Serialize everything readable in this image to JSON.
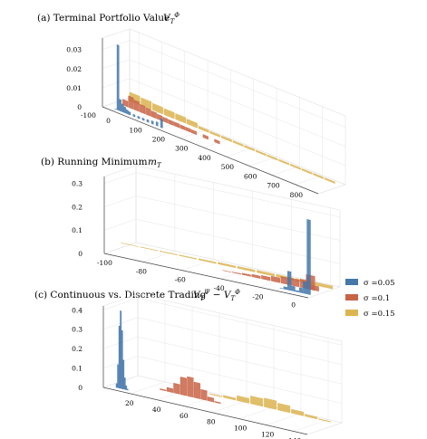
{
  "chart_data": [
    {
      "type": "bar",
      "panel_label": "(a)",
      "title": "(a) Terminal Portfolio Value",
      "title_math": "V_T^Φ",
      "x_ticks": [
        "0",
        "100",
        "200",
        "300",
        "400",
        "500",
        "600",
        "700",
        "800"
      ],
      "z_ticks": [
        "0.03",
        "0.02",
        "0.01",
        "0"
      ],
      "depth_ticks": [
        "-100"
      ],
      "xlim": [
        -40,
        900
      ],
      "zlim": [
        0,
        0.036
      ],
      "series": [
        {
          "name": "σ =0.05",
          "color": "#4477aa",
          "x": [
            0,
            10,
            20,
            30,
            40,
            50,
            60,
            80,
            100,
            120,
            140,
            160,
            180,
            200
          ],
          "values": [
            0.0,
            0.034,
            0.006,
            0.004,
            0.003,
            0.002,
            0.0015,
            0.001,
            0.001,
            0.001,
            0.0012,
            0.0015,
            0.002,
            0.0045
          ]
        },
        {
          "name": "σ =0.1",
          "color": "#c86446",
          "x": [
            0,
            25,
            50,
            75,
            100,
            125,
            150,
            175,
            200,
            225,
            250,
            275,
            300,
            350,
            400
          ],
          "values": [
            0.003,
            0.006,
            0.005,
            0.004,
            0.0035,
            0.003,
            0.0025,
            0.0022,
            0.002,
            0.002,
            0.0018,
            0.0017,
            0.0016,
            0.0015,
            0.0014
          ]
        },
        {
          "name": "σ =0.15",
          "color": "#dcb450",
          "x": [
            0,
            50,
            100,
            150,
            200,
            250,
            300,
            350,
            400,
            450,
            500,
            550,
            600,
            650,
            700,
            750,
            800,
            850
          ],
          "values": [
            0.0045,
            0.004,
            0.0035,
            0.0032,
            0.003,
            0.0025,
            0.0012,
            0.001,
            0.001,
            0.0009,
            0.0009,
            0.0008,
            0.0008,
            0.0008,
            0.0008,
            0.0008,
            0.0008,
            0.0008
          ]
        }
      ]
    },
    {
      "type": "bar",
      "panel_label": "(b)",
      "title": "(b) Running Minimum",
      "title_math": "m_T",
      "x_ticks": [
        "-100",
        "-80",
        "-60",
        "-40",
        "-20",
        "0"
      ],
      "z_ticks": [
        "0.3",
        "0.2",
        "0.1",
        "0"
      ],
      "xlim": [
        -100,
        5
      ],
      "zlim": [
        0,
        0.33
      ],
      "series": [
        {
          "name": "σ =0.05",
          "color": "#4477aa",
          "x": [
            -12,
            -10,
            -8,
            -6,
            -4,
            -2,
            0,
            2
          ],
          "values": [
            0.0,
            0.01,
            0.08,
            0.02,
            0.005,
            0.02,
            0.05,
            0.32
          ]
        },
        {
          "name": "σ =0.1",
          "color": "#c86446",
          "x": [
            -45,
            -40,
            -35,
            -30,
            -25,
            -20,
            -15,
            -10,
            -5,
            -2,
            0
          ],
          "values": [
            0.0,
            0.002,
            0.006,
            0.01,
            0.014,
            0.02,
            0.028,
            0.03,
            0.035,
            0.06,
            0.02
          ]
        },
        {
          "name": "σ =0.15",
          "color": "#dcb450",
          "x": [
            -100,
            -90,
            -80,
            -70,
            -60,
            -50,
            -40,
            -30,
            -20,
            -10,
            0
          ],
          "values": [
            0.0,
            0.001,
            0.002,
            0.003,
            0.005,
            0.007,
            0.008,
            0.009,
            0.01,
            0.01,
            0.012
          ]
        }
      ]
    },
    {
      "type": "bar",
      "panel_label": "(c)",
      "title": "(c) Continuous vs. Discrete Trading",
      "title_math": "V_T^Ψ − V_T^Φ",
      "x_ticks": [
        "20",
        "40",
        "60",
        "80",
        "100",
        "120",
        "140"
      ],
      "z_ticks": [
        "0.4",
        "0.3",
        "0.2",
        "0.1",
        "0"
      ],
      "xlim": [
        0,
        150
      ],
      "zlim": [
        0,
        0.42
      ],
      "series": [
        {
          "name": "σ =0.05",
          "color": "#4477aa",
          "x": [
            6,
            7,
            8,
            9,
            10,
            11,
            12,
            13,
            14
          ],
          "values": [
            0.02,
            0.12,
            0.32,
            0.4,
            0.3,
            0.15,
            0.06,
            0.02,
            0.005
          ]
        },
        {
          "name": "σ =0.1",
          "color": "#c86446",
          "x": [
            30,
            35,
            40,
            45,
            50,
            55,
            60,
            65,
            70
          ],
          "values": [
            0.005,
            0.02,
            0.05,
            0.09,
            0.1,
            0.08,
            0.05,
            0.02,
            0.005
          ]
        },
        {
          "name": "σ =0.15",
          "color": "#dcb450",
          "x": [
            60,
            70,
            80,
            90,
            100,
            110,
            120,
            130,
            140
          ],
          "values": [
            0.003,
            0.01,
            0.025,
            0.04,
            0.045,
            0.035,
            0.02,
            0.01,
            0.003
          ]
        }
      ]
    }
  ],
  "legend": {
    "placement": "right",
    "entries": [
      {
        "label": "σ =0.05",
        "color": "#4477aa"
      },
      {
        "label": "σ =0.1",
        "color": "#c86446"
      },
      {
        "label": "σ =0.15",
        "color": "#dcb450"
      }
    ]
  },
  "grid": true
}
